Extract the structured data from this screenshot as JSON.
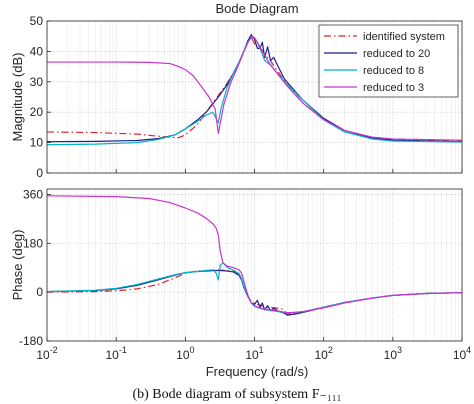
{
  "chart_data": {
    "type": "line",
    "title": "Bode Diagram",
    "xlabel": "Frequency  (rad/s)",
    "xscale": "log",
    "xlim": [
      0.01,
      10000
    ],
    "x_ticks": [
      0.01,
      0.1,
      1,
      10,
      100,
      1000,
      10000
    ],
    "x_tick_labels": [
      {
        "base": "10",
        "exp": "-2"
      },
      {
        "base": "10",
        "exp": "-1"
      },
      {
        "base": "10",
        "exp": "0"
      },
      {
        "base": "10",
        "exp": "1"
      },
      {
        "base": "10",
        "exp": "2"
      },
      {
        "base": "10",
        "exp": "3"
      },
      {
        "base": "10",
        "exp": "4"
      }
    ],
    "grid": true,
    "legend_position": "top-right",
    "magnitude": {
      "ylabel": "Magnitude (dB)",
      "ylim": [
        0,
        50
      ],
      "y_ticks": [
        "0",
        "10",
        "20",
        "30",
        "40",
        "50"
      ],
      "series": [
        {
          "name": "identified system",
          "color": "#d62728",
          "dash": "dashdot",
          "points": [
            [
              0.01,
              13.5
            ],
            [
              0.05,
              13.3
            ],
            [
              0.2,
              12.8
            ],
            [
              0.5,
              11.9
            ],
            [
              0.8,
              11.6
            ],
            [
              1,
              12.5
            ],
            [
              1.5,
              16
            ],
            [
              2,
              20
            ],
            [
              3,
              25.5
            ],
            [
              4,
              29.5
            ],
            [
              5,
              33
            ],
            [
              6,
              36.5
            ],
            [
              7,
              40
            ],
            [
              8,
              43
            ],
            [
              8.8,
              45
            ],
            [
              9.3,
              44
            ],
            [
              10,
              42.5
            ],
            [
              11,
              42
            ],
            [
              12,
              41.5
            ],
            [
              14,
              39
            ],
            [
              17,
              37
            ],
            [
              20,
              34.5
            ],
            [
              30,
              29
            ],
            [
              50,
              23
            ],
            [
              100,
              17.5
            ],
            [
              200,
              14
            ],
            [
              500,
              11.7
            ],
            [
              1000,
              11
            ],
            [
              10000,
              10.5
            ]
          ]
        },
        {
          "name": "reduced to 20",
          "color": "#1f1f8f",
          "dash": "solid",
          "points": [
            [
              0.01,
              10.3
            ],
            [
              0.05,
              10.4
            ],
            [
              0.2,
              10.7
            ],
            [
              0.4,
              11.3
            ],
            [
              0.7,
              12.5
            ],
            [
              1,
              14.5
            ],
            [
              1.5,
              17.5
            ],
            [
              2,
              20
            ],
            [
              3,
              25
            ],
            [
              4,
              29
            ],
            [
              5,
              33
            ],
            [
              6,
              36.5
            ],
            [
              7,
              40
            ],
            [
              8,
              43.5
            ],
            [
              9,
              45.5
            ],
            [
              10,
              44
            ],
            [
              11,
              41
            ],
            [
              12,
              41
            ],
            [
              13,
              43
            ],
            [
              14,
              38
            ],
            [
              15.5,
              41.5
            ],
            [
              17,
              37
            ],
            [
              19,
              38
            ],
            [
              22,
              35
            ],
            [
              27,
              31
            ],
            [
              35,
              28
            ],
            [
              50,
              24
            ],
            [
              100,
              18
            ],
            [
              200,
              14
            ],
            [
              500,
              11.5
            ],
            [
              1000,
              10.8
            ],
            [
              10000,
              10.3
            ]
          ]
        },
        {
          "name": "reduced to 8",
          "color": "#00b4c4",
          "dash": "solid",
          "points": [
            [
              0.01,
              9.3
            ],
            [
              0.05,
              9.5
            ],
            [
              0.2,
              10
            ],
            [
              0.4,
              11
            ],
            [
              0.7,
              12.5
            ],
            [
              1,
              14.5
            ],
            [
              1.5,
              17
            ],
            [
              2,
              19
            ],
            [
              2.5,
              20
            ],
            [
              3,
              16.5
            ],
            [
              3.3,
              21.5
            ],
            [
              4,
              28
            ],
            [
              5,
              33
            ],
            [
              6,
              36.5
            ],
            [
              7,
              40
            ],
            [
              8,
              43
            ],
            [
              9,
              44.5
            ],
            [
              10,
              44.5
            ],
            [
              11,
              43
            ],
            [
              12,
              41
            ],
            [
              13,
              39
            ],
            [
              14,
              37
            ],
            [
              17,
              35.5
            ],
            [
              22,
              32.5
            ],
            [
              30,
              29
            ],
            [
              50,
              24
            ],
            [
              100,
              17.5
            ],
            [
              200,
              13.5
            ],
            [
              500,
              11.2
            ],
            [
              1000,
              10.5
            ],
            [
              10000,
              10.2
            ]
          ]
        },
        {
          "name": "reduced to 3",
          "color": "#cc33cc",
          "dash": "solid",
          "points": [
            [
              0.01,
              36.5
            ],
            [
              0.1,
              36.5
            ],
            [
              0.3,
              36.4
            ],
            [
              0.6,
              36
            ],
            [
              0.8,
              35
            ],
            [
              1,
              34
            ],
            [
              1.3,
              32
            ],
            [
              1.7,
              28.5
            ],
            [
              2.2,
              25
            ],
            [
              2.7,
              21
            ],
            [
              3,
              13
            ],
            [
              3.2,
              16.5
            ],
            [
              3.6,
              22.5
            ],
            [
              4.5,
              29.5
            ],
            [
              5.5,
              34
            ],
            [
              6.5,
              38
            ],
            [
              7.5,
              41.5
            ],
            [
              8.5,
              44
            ],
            [
              9.3,
              45
            ],
            [
              10,
              44.5
            ],
            [
              11,
              43
            ],
            [
              13,
              40
            ],
            [
              16,
              36.5
            ],
            [
              20,
              33.5
            ],
            [
              30,
              28.5
            ],
            [
              50,
              23
            ],
            [
              100,
              17.5
            ],
            [
              200,
              14
            ],
            [
              500,
              11.8
            ],
            [
              1000,
              11.2
            ],
            [
              10000,
              10.8
            ]
          ]
        }
      ]
    },
    "phase": {
      "ylabel": "Phase (deg)",
      "ylim": [
        -180,
        380
      ],
      "y_ticks": [
        "-180",
        "0",
        "180",
        "360"
      ],
      "series": [
        {
          "name": "identified system",
          "color": "#d62728",
          "dash": "dashdot",
          "points": [
            [
              0.01,
              0
            ],
            [
              0.05,
              2
            ],
            [
              0.1,
              5
            ],
            [
              0.2,
              12
            ],
            [
              0.4,
              28
            ],
            [
              0.7,
              52
            ],
            [
              1,
              70
            ],
            [
              1.5,
              78
            ],
            [
              2,
              80
            ],
            [
              3,
              82
            ],
            [
              4,
              80
            ],
            [
              5,
              76
            ],
            [
              6,
              60
            ],
            [
              6.5,
              45
            ],
            [
              7,
              20
            ],
            [
              8,
              -15
            ],
            [
              9,
              -35
            ],
            [
              10,
              -42
            ],
            [
              12,
              -48
            ],
            [
              15,
              -55
            ],
            [
              20,
              -58
            ],
            [
              25,
              -62
            ],
            [
              30,
              -80
            ],
            [
              40,
              -78
            ],
            [
              60,
              -68
            ],
            [
              100,
              -55
            ],
            [
              200,
              -38
            ],
            [
              500,
              -22
            ],
            [
              1000,
              -12
            ],
            [
              3000,
              -5
            ],
            [
              10000,
              -2
            ]
          ]
        },
        {
          "name": "reduced to 20",
          "color": "#1f1f8f",
          "dash": "solid",
          "points": [
            [
              0.01,
              2
            ],
            [
              0.05,
              6
            ],
            [
              0.1,
              12
            ],
            [
              0.2,
              25
            ],
            [
              0.4,
              45
            ],
            [
              0.7,
              62
            ],
            [
              1,
              72
            ],
            [
              1.5,
              76
            ],
            [
              2,
              78
            ],
            [
              3,
              80
            ],
            [
              4,
              78
            ],
            [
              5,
              74
            ],
            [
              6,
              62
            ],
            [
              6.5,
              45
            ],
            [
              7,
              18
            ],
            [
              8,
              -15
            ],
            [
              9,
              -40
            ],
            [
              10,
              -45
            ],
            [
              11,
              -30
            ],
            [
              12,
              -55
            ],
            [
              13,
              -40
            ],
            [
              14,
              -65
            ],
            [
              15.5,
              -50
            ],
            [
              17,
              -68
            ],
            [
              19,
              -60
            ],
            [
              22,
              -70
            ],
            [
              27,
              -78
            ],
            [
              30,
              -85
            ],
            [
              40,
              -80
            ],
            [
              60,
              -70
            ],
            [
              100,
              -56
            ],
            [
              200,
              -38
            ],
            [
              500,
              -22
            ],
            [
              1000,
              -12
            ],
            [
              3000,
              -5
            ],
            [
              10000,
              -2
            ]
          ]
        },
        {
          "name": "reduced to 8",
          "color": "#00b4c4",
          "dash": "solid",
          "points": [
            [
              0.01,
              2
            ],
            [
              0.05,
              7
            ],
            [
              0.1,
              14
            ],
            [
              0.2,
              28
            ],
            [
              0.4,
              48
            ],
            [
              0.7,
              64
            ],
            [
              1,
              72
            ],
            [
              1.5,
              76
            ],
            [
              2,
              80
            ],
            [
              2.5,
              82
            ],
            [
              2.8,
              70
            ],
            [
              3,
              45
            ],
            [
              3.2,
              100
            ],
            [
              3.5,
              108
            ],
            [
              4,
              92
            ],
            [
              5,
              80
            ],
            [
              6,
              68
            ],
            [
              6.5,
              50
            ],
            [
              7,
              22
            ],
            [
              8,
              -12
            ],
            [
              9,
              -40
            ],
            [
              10,
              -52
            ],
            [
              12,
              -60
            ],
            [
              15,
              -66
            ],
            [
              20,
              -70
            ],
            [
              30,
              -78
            ],
            [
              50,
              -72
            ],
            [
              100,
              -56
            ],
            [
              200,
              -38
            ],
            [
              500,
              -22
            ],
            [
              1000,
              -12
            ],
            [
              3000,
              -5
            ],
            [
              10000,
              -2
            ]
          ]
        },
        {
          "name": "reduced to 3",
          "color": "#cc33cc",
          "dash": "solid",
          "points": [
            [
              0.01,
              355
            ],
            [
              0.1,
              352
            ],
            [
              0.3,
              345
            ],
            [
              0.6,
              330
            ],
            [
              1,
              310
            ],
            [
              1.5,
              292
            ],
            [
              2,
              272
            ],
            [
              2.5,
              252
            ],
            [
              2.8,
              235
            ],
            [
              3,
              210
            ],
            [
              3.2,
              150
            ],
            [
              3.5,
              108
            ],
            [
              4,
              96
            ],
            [
              5,
              90
            ],
            [
              6,
              82
            ],
            [
              6.5,
              70
            ],
            [
              7,
              40
            ],
            [
              8,
              -10
            ],
            [
              9,
              -40
            ],
            [
              10,
              -50
            ],
            [
              12,
              -58
            ],
            [
              15,
              -64
            ],
            [
              20,
              -68
            ],
            [
              30,
              -76
            ],
            [
              50,
              -72
            ],
            [
              100,
              -58
            ],
            [
              200,
              -40
            ],
            [
              500,
              -22
            ],
            [
              1000,
              -12
            ],
            [
              3000,
              -5
            ],
            [
              10000,
              -2
            ]
          ]
        }
      ]
    }
  },
  "caption": "(b) Bode diagram of subsystem F₋₁₁₁"
}
